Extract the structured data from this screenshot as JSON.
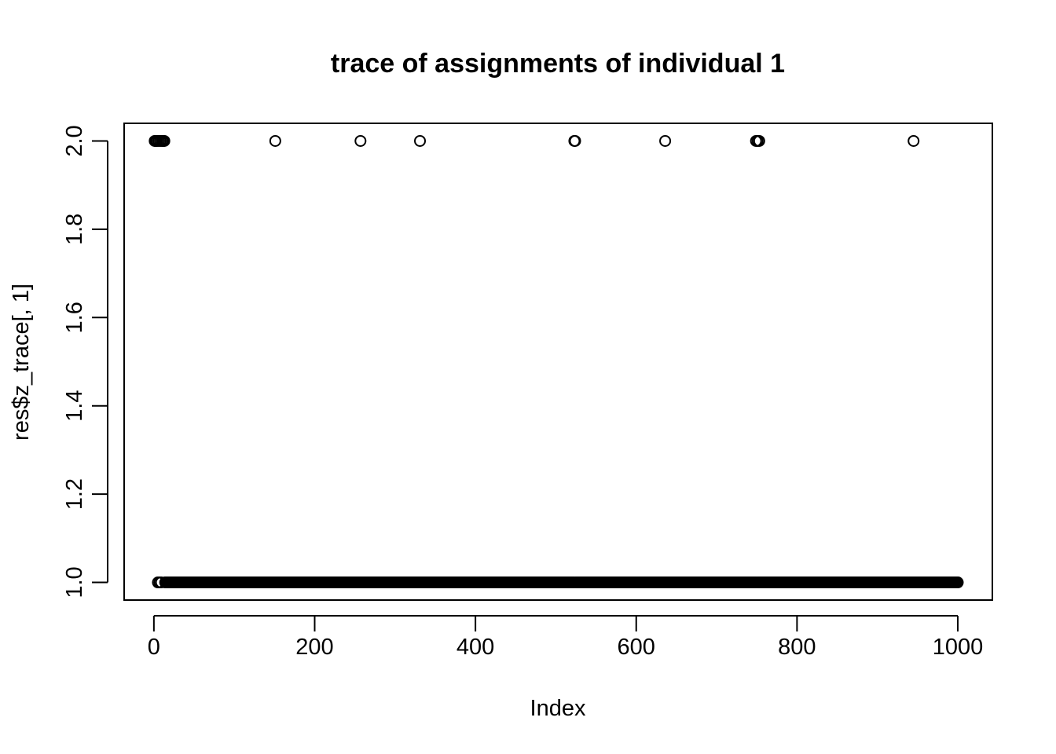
{
  "chart_data": {
    "type": "scatter",
    "title": "trace of assignments of individual 1",
    "xlabel": "Index",
    "ylabel": "res$z_trace[, 1]",
    "xlim": [
      -37,
      1043
    ],
    "ylim": [
      0.96,
      2.04
    ],
    "x_ticks": [
      0,
      200,
      400,
      600,
      800,
      1000
    ],
    "x_tick_labels": [
      "0",
      "200",
      "400",
      "600",
      "800",
      "1000"
    ],
    "y_ticks": [
      1.0,
      1.2,
      1.4,
      1.6,
      1.8,
      2.0
    ],
    "y_tick_labels": [
      "1.0",
      "1.2",
      "1.4",
      "1.6",
      "1.8",
      "2.0"
    ],
    "grid": false,
    "legend": "none",
    "marker": "open-circle",
    "n_points": 1000,
    "value_2_indices": [
      1,
      2,
      3,
      4,
      6,
      8,
      10,
      11,
      12,
      13,
      151,
      257,
      331,
      523,
      524,
      636,
      749,
      751,
      753,
      945
    ],
    "default_value": 1
  }
}
